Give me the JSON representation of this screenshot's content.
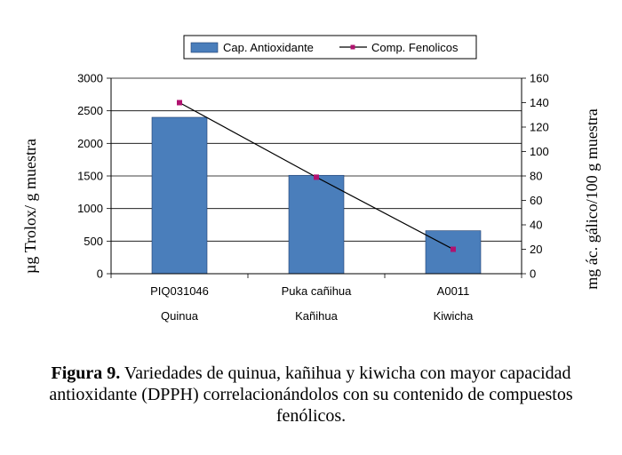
{
  "chart_data": {
    "type": "bar",
    "categories": [
      "PIQ031046",
      "Puka cañihua",
      "A0011"
    ],
    "categories_secondary": [
      "Quinua",
      "Kañihua",
      "Kiwicha"
    ],
    "series": [
      {
        "name": "Cap. Antioxidante",
        "type": "bar",
        "axis": "left",
        "values": [
          2400,
          1510,
          660
        ],
        "color": "#4a7ebb"
      },
      {
        "name": "Comp. Fenolicos",
        "type": "line",
        "axis": "right",
        "values": [
          140,
          79,
          20
        ],
        "color": "#b0126f"
      }
    ],
    "ylabel": "µg Trolox/ g muestra",
    "y2label": "mg ác. gálico/100 g muestra",
    "ylim": [
      0,
      3000
    ],
    "y2lim": [
      0,
      160
    ],
    "yticks": [
      "0",
      "500",
      "1000",
      "1500",
      "2000",
      "2500",
      "3000"
    ],
    "y2ticks": [
      "0",
      "20",
      "40",
      "60",
      "80",
      "100",
      "120",
      "140",
      "160"
    ],
    "grid": true,
    "legend": "top"
  },
  "caption": {
    "label": "Figura 9.",
    "text": " Variedades de quinua, kañihua y kiwicha con mayor capacidad antioxidante (DPPH) correlacionándolos con su contenido de compuestos fenólicos."
  }
}
